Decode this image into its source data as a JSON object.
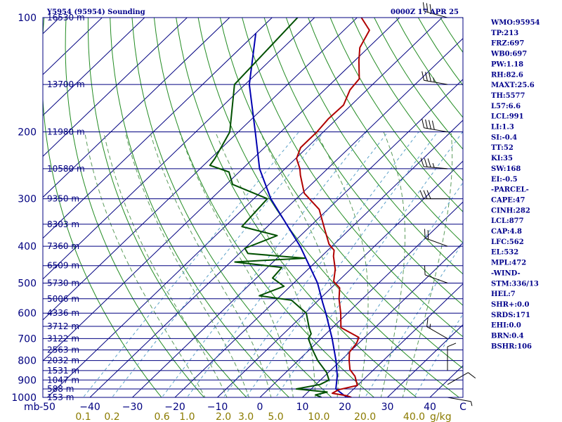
{
  "header": {
    "station": "Y5954 (95954) Sounding",
    "time": "0000Z 17 APR 25"
  },
  "indices": [
    "WMO:95954",
    "TP:213",
    "FRZ:697",
    "WB0:697",
    "PW:1.18",
    "RH:82.6",
    "MAXT:25.6",
    "TH:5577",
    "L57:6.6",
    "LCL:991",
    "LI:1.3",
    "SI:-0.4",
    "TT:52",
    "KI:35",
    "SW:168",
    "EI:-0.5",
    "-PARCEL-",
    "CAPE:47",
    "CINH:282",
    "LCL:877",
    "CAP:4.8",
    "LFC:562",
    "EL:532",
    "MPL:472",
    "-WIND-",
    "STM:336/13",
    "HEL:7",
    "SHR+:0.0",
    "SRDS:171",
    "EHI:0.0",
    "BRN:0.4",
    "BSHR:106"
  ],
  "colors": {
    "frame": "#000080",
    "isobar": "#000080",
    "isotherm": "#000080",
    "dry_adiabat": "#228b22",
    "moist_adiabat": "#5b9b5b",
    "mixing_ratio": "#5aa0c8",
    "temperature": "#b00000",
    "dewpoint": "#005000",
    "parcel": "#0000b0",
    "barb": "#000000",
    "mixing_ratio_label": "#8b7b00"
  },
  "chart_data": {
    "type": "skew-t",
    "pressure_axis": {
      "log": true,
      "range_hPa": [
        1000,
        100
      ]
    },
    "x_axis": {
      "ticks_C": [
        -50,
        -40,
        -30,
        -20,
        -10,
        0,
        10,
        20,
        30,
        40
      ],
      "tick_labels": [
        "-50",
        "−40",
        "−30",
        "−20",
        "−10",
        "0",
        "10",
        "20",
        "30",
        "40"
      ],
      "extra_tick_label": "C",
      "corner_label": "mb"
    },
    "isobars": [
      {
        "p": 100,
        "label": "100",
        "height_label": "16530 m"
      },
      {
        "p": 150,
        "label": "",
        "height_label": "13700 m"
      },
      {
        "p": 200,
        "label": "200",
        "height_label": "11980 m"
      },
      {
        "p": 250,
        "label": "",
        "height_label": "10580 m"
      },
      {
        "p": 300,
        "label": "300",
        "height_label": "9350 m"
      },
      {
        "p": 350,
        "label": "",
        "height_label": "8303 m"
      },
      {
        "p": 400,
        "label": "400",
        "height_label": "7360 m"
      },
      {
        "p": 450,
        "label": "",
        "height_label": "6509 m"
      },
      {
        "p": 500,
        "label": "500",
        "height_label": "5730 m"
      },
      {
        "p": 550,
        "label": "",
        "height_label": "5006 m"
      },
      {
        "p": 600,
        "label": "600",
        "height_label": "4336 m"
      },
      {
        "p": 650,
        "label": "",
        "height_label": "3712 m"
      },
      {
        "p": 700,
        "label": "700",
        "height_label": "3122 m"
      },
      {
        "p": 750,
        "label": "",
        "height_label": "2563 m"
      },
      {
        "p": 800,
        "label": "800",
        "height_label": "2032 m"
      },
      {
        "p": 850,
        "label": "",
        "height_label": "1531 m"
      },
      {
        "p": 900,
        "label": "900",
        "height_label": "1047 m"
      },
      {
        "p": 950,
        "label": "",
        "height_label": "588 m"
      },
      {
        "p": 1000,
        "label": "1000",
        "height_label": "153 m"
      }
    ],
    "isotherms_C": [
      -170,
      -160,
      -150,
      -140,
      -130,
      -120,
      -110,
      -100,
      -90,
      -80,
      -70,
      -60,
      -50,
      -40,
      -30,
      -20,
      -10,
      0,
      10,
      20,
      30,
      40
    ],
    "dry_adiabats_thetaK": [
      250,
      260,
      270,
      280,
      290,
      300,
      310,
      320,
      330,
      340,
      350,
      360,
      370,
      380,
      390,
      400,
      410,
      420,
      430,
      440,
      450,
      460,
      470,
      480,
      490,
      500,
      510,
      520
    ],
    "moist_adiabats_surfaceC": [
      -10,
      -5,
      0,
      5,
      10,
      15,
      20,
      25,
      30,
      35
    ],
    "mixing_ratio_lines_gkg": [
      {
        "w": 0.1,
        "label": "0.1"
      },
      {
        "w": 0.2,
        "label": "0.2"
      },
      {
        "w": 0.6,
        "label": "0.6"
      },
      {
        "w": 1.0,
        "label": "1.0"
      },
      {
        "w": 2.0,
        "label": "2.0"
      },
      {
        "w": 3.0,
        "label": "3.0"
      },
      {
        "w": 5.0,
        "label": "5.0"
      },
      {
        "w": 10.0,
        "label": "10.0"
      },
      {
        "w": 20.0,
        "label": "20.0"
      },
      {
        "w": 40.0,
        "label": "40.0"
      }
    ],
    "mixing_ratio_unit": "g/kg",
    "temperature": [
      {
        "p": 1000,
        "t": 21.5
      },
      {
        "p": 990,
        "t": 20.0
      },
      {
        "p": 975,
        "t": 16.0
      },
      {
        "p": 955,
        "t": 16.6
      },
      {
        "p": 930,
        "t": 20.0
      },
      {
        "p": 880,
        "t": 17.2
      },
      {
        "p": 845,
        "t": 14.4
      },
      {
        "p": 800,
        "t": 12.0
      },
      {
        "p": 760,
        "t": 10.0
      },
      {
        "p": 720,
        "t": 9.5
      },
      {
        "p": 695,
        "t": 8.6
      },
      {
        "p": 655,
        "t": 2.0
      },
      {
        "p": 600,
        "t": -1.6
      },
      {
        "p": 550,
        "t": -5.5
      },
      {
        "p": 515,
        "t": -8.0
      },
      {
        "p": 495,
        "t": -11.0
      },
      {
        "p": 460,
        "t": -13.6
      },
      {
        "p": 425,
        "t": -17.2
      },
      {
        "p": 410,
        "t": -18.5
      },
      {
        "p": 395,
        "t": -21.2
      },
      {
        "p": 360,
        "t": -26.0
      },
      {
        "p": 320,
        "t": -32.0
      },
      {
        "p": 290,
        "t": -39.5
      },
      {
        "p": 260,
        "t": -44.8
      },
      {
        "p": 250,
        "t": -46.5
      },
      {
        "p": 235,
        "t": -49.8
      },
      {
        "p": 220,
        "t": -51.5
      },
      {
        "p": 210,
        "t": -51.5
      },
      {
        "p": 200,
        "t": -51.5
      },
      {
        "p": 185,
        "t": -52.0
      },
      {
        "p": 170,
        "t": -51.8
      },
      {
        "p": 155,
        "t": -54.0
      },
      {
        "p": 145,
        "t": -54.5
      },
      {
        "p": 130,
        "t": -59.0
      },
      {
        "p": 120,
        "t": -62.0
      },
      {
        "p": 108,
        "t": -64.0
      },
      {
        "p": 100,
        "t": -69.0
      }
    ],
    "dewpoint": [
      {
        "p": 1000,
        "t": 14.5
      },
      {
        "p": 985,
        "t": 12.5
      },
      {
        "p": 968,
        "t": 14.5
      },
      {
        "p": 950,
        "t": 6.5
      },
      {
        "p": 925,
        "t": 11.0
      },
      {
        "p": 900,
        "t": 12.0
      },
      {
        "p": 860,
        "t": 9.6
      },
      {
        "p": 800,
        "t": 4.6
      },
      {
        "p": 750,
        "t": 0.8
      },
      {
        "p": 700,
        "t": -3.0
      },
      {
        "p": 680,
        "t": -3.5
      },
      {
        "p": 655,
        "t": -5.5
      },
      {
        "p": 600,
        "t": -9.7
      },
      {
        "p": 555,
        "t": -16.3
      },
      {
        "p": 540,
        "t": -25.0
      },
      {
        "p": 510,
        "t": -21.5
      },
      {
        "p": 485,
        "t": -26.2
      },
      {
        "p": 455,
        "t": -26.6
      },
      {
        "p": 440,
        "t": -39.0
      },
      {
        "p": 430,
        "t": -23.5
      },
      {
        "p": 418,
        "t": -38.0
      },
      {
        "p": 405,
        "t": -40.0
      },
      {
        "p": 375,
        "t": -35.5
      },
      {
        "p": 355,
        "t": -46.0
      },
      {
        "p": 300,
        "t": -46.8
      },
      {
        "p": 275,
        "t": -58.5
      },
      {
        "p": 255,
        "t": -62.4
      },
      {
        "p": 245,
        "t": -68.5
      },
      {
        "p": 235,
        "t": -69.0
      },
      {
        "p": 200,
        "t": -72.0
      },
      {
        "p": 150,
        "t": -82.5
      },
      {
        "p": 100,
        "t": -84.0
      }
    ],
    "parcel": [
      {
        "p": 1000,
        "t": 21.5
      },
      {
        "p": 990,
        "t": 19.5
      },
      {
        "p": 950,
        "t": 15.8
      },
      {
        "p": 877,
        "t": 12.9
      },
      {
        "p": 800,
        "t": 8.9
      },
      {
        "p": 700,
        "t": 2.6
      },
      {
        "p": 600,
        "t": -5.1
      },
      {
        "p": 562,
        "t": -8.5
      },
      {
        "p": 500,
        "t": -14.4
      },
      {
        "p": 400,
        "t": -27.5
      },
      {
        "p": 300,
        "t": -46.0
      },
      {
        "p": 250,
        "t": -56.0
      },
      {
        "p": 200,
        "t": -66.0
      },
      {
        "p": 150,
        "t": -79.0
      },
      {
        "p": 110,
        "t": -90.0
      }
    ],
    "wind_barbs": [
      {
        "p": 1000,
        "dir": 100,
        "spd": 5
      },
      {
        "p": 925,
        "dir": 60,
        "spd": 10
      },
      {
        "p": 850,
        "dir": 0,
        "spd": 10
      },
      {
        "p": 700,
        "dir": 300,
        "spd": 15
      },
      {
        "p": 500,
        "dir": 290,
        "spd": 10
      },
      {
        "p": 400,
        "dir": 290,
        "spd": 20
      },
      {
        "p": 300,
        "dir": 270,
        "spd": 30
      },
      {
        "p": 250,
        "dir": 275,
        "spd": 35
      },
      {
        "p": 200,
        "dir": 280,
        "spd": 40
      },
      {
        "p": 150,
        "dir": 280,
        "spd": 35
      },
      {
        "p": 100,
        "dir": 285,
        "spd": 30
      }
    ]
  }
}
